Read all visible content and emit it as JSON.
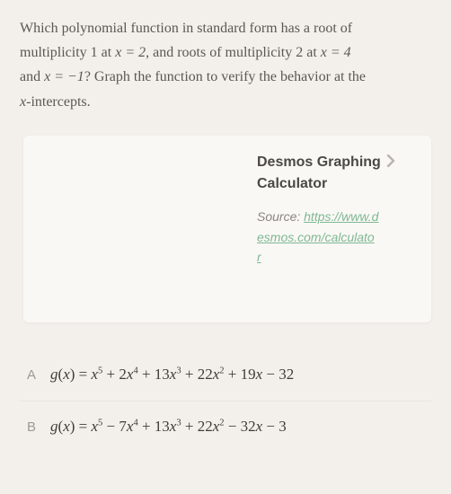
{
  "page": {
    "background_color": "#f3f0ec",
    "text_color": "#5a5852",
    "font_family_serif": "Georgia",
    "font_family_sans": "Helvetica",
    "font_size_body": 16,
    "link_color": "#7fb893",
    "muted_color": "#9c9a92"
  },
  "question": {
    "line1_a": "Which polynomial function in standard form has a root of",
    "line2_a": "multiplicity 1 at ",
    "xeq2": "x = 2",
    "line2_b": ", and roots of multiplicity 2 at ",
    "xeq4": "x = 4",
    "line3_a": "and ",
    "xeqm1": "x = −1",
    "line3_b": "? Graph the function to verify the behavior at the",
    "line4_a": "-intercepts.",
    "xvar": "x"
  },
  "card": {
    "title_a": "Desmos Graphing",
    "title_b": "Calculator",
    "chevron_color": "#b8b5ad",
    "source_label": "Source: ",
    "url_display_1": "https://www.d",
    "url_display_2": "esmos.com/calculato",
    "url_display_3": "r",
    "url_full": "https://www.desmos.com/calculator",
    "background_color": "#faf8f5"
  },
  "choices": [
    {
      "letter": "A",
      "fn": "g",
      "var": "x",
      "terms": [
        {
          "sign": "",
          "coef": "",
          "power": 5
        },
        {
          "sign": "+",
          "coef": "2",
          "power": 4
        },
        {
          "sign": "+",
          "coef": "13",
          "power": 3
        },
        {
          "sign": "+",
          "coef": "22",
          "power": 2
        },
        {
          "sign": "+",
          "coef": "19",
          "power": 1
        },
        {
          "sign": "−",
          "coef": "32",
          "power": 0
        }
      ]
    },
    {
      "letter": "B",
      "fn": "g",
      "var": "x",
      "terms": [
        {
          "sign": "",
          "coef": "",
          "power": 5
        },
        {
          "sign": "−",
          "coef": "7",
          "power": 4
        },
        {
          "sign": "+",
          "coef": "13",
          "power": 3
        },
        {
          "sign": "+",
          "coef": "22",
          "power": 2
        },
        {
          "sign": "−",
          "coef": "32",
          "power": 1
        },
        {
          "sign": "−",
          "coef": "3",
          "power": 0
        }
      ]
    }
  ]
}
